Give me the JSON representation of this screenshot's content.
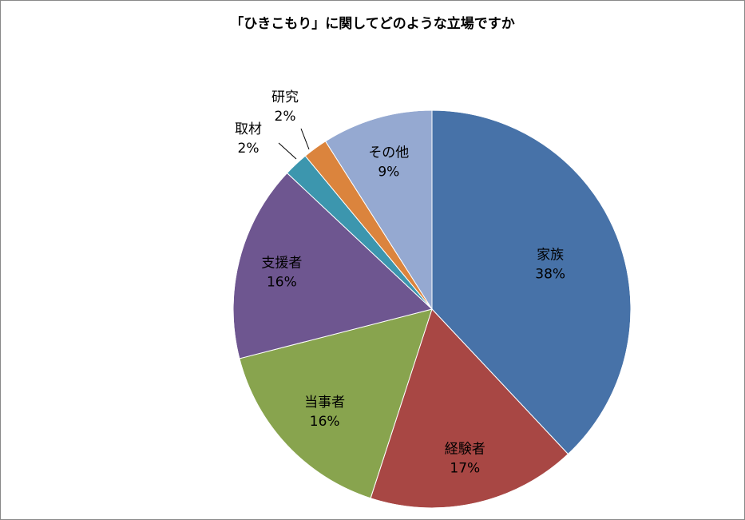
{
  "chart_data": {
    "type": "pie",
    "title": "「ひきこもり」に関してどのような立場ですか",
    "start_angle": "12 o'clock",
    "direction": "clockwise",
    "slices": [
      {
        "label": "家族",
        "percent_label": "38%",
        "value": 38,
        "color": "#4772A8"
      },
      {
        "label": "経験者",
        "percent_label": "17%",
        "value": 17,
        "color": "#A84744"
      },
      {
        "label": "当事者",
        "percent_label": "16%",
        "value": 16,
        "color": "#88A44E"
      },
      {
        "label": "支援者",
        "percent_label": "16%",
        "value": 16,
        "color": "#6E5690"
      },
      {
        "label": "取材",
        "percent_label": "2%",
        "value": 2,
        "color": "#3C96AE"
      },
      {
        "label": "研究",
        "percent_label": "2%",
        "value": 2,
        "color": "#DB843D"
      },
      {
        "label": "その他",
        "percent_label": "9%",
        "value": 9,
        "color": "#95A9D1"
      }
    ]
  }
}
